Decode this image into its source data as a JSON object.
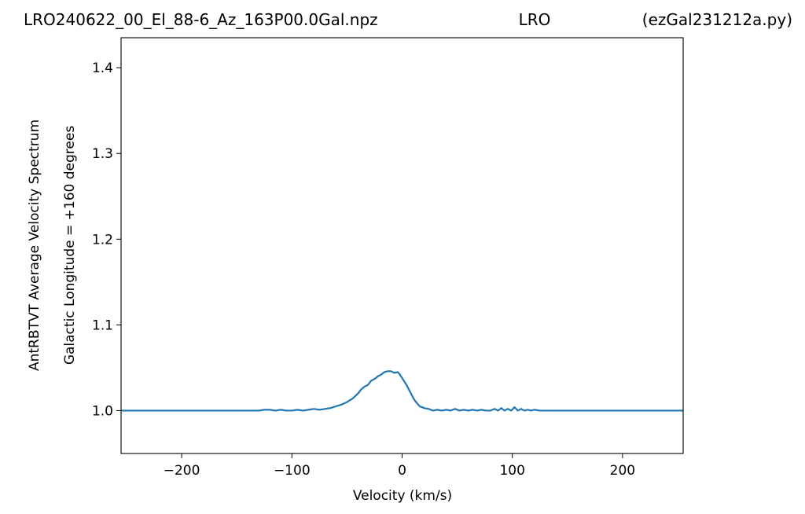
{
  "header": {
    "left": "LRO240622_00_El_88-6_Az_163P00.0Gal.npz",
    "center": "LRO",
    "right": "(ezGal231212a.py)"
  },
  "chart_data": {
    "type": "line",
    "xlabel": "Velocity (km/s)",
    "ylabel_line1": "AntRBTVT Average Velocity Spectrum",
    "ylabel_line2": "Galactic Longitude = +160 degrees",
    "xlim": [
      -255,
      255
    ],
    "ylim": [
      0.95,
      1.435
    ],
    "xticks": [
      -200,
      -100,
      0,
      100,
      200
    ],
    "xtick_labels": [
      "−200",
      "−100",
      "0",
      "100",
      "200"
    ],
    "yticks": [
      1.0,
      1.1,
      1.2,
      1.3,
      1.4
    ],
    "ytick_labels": [
      "1.0",
      "1.1",
      "1.2",
      "1.3",
      "1.4"
    ],
    "grid": false,
    "line_color": "#1f77b4",
    "series": [
      {
        "x": [
          -255,
          -200,
          -150,
          -130,
          -125,
          -120,
          -115,
          -110,
          -105,
          -100,
          -95,
          -90,
          -85,
          -80,
          -75,
          -70,
          -65,
          -60,
          -55,
          -50,
          -45,
          -40,
          -37,
          -34,
          -31,
          -28,
          -25,
          -22,
          -19,
          -16,
          -13,
          -10,
          -7,
          -4,
          -2,
          0,
          2,
          4,
          6,
          8,
          10,
          12,
          14,
          16,
          20,
          24,
          28,
          32,
          36,
          40,
          44,
          48,
          52,
          56,
          60,
          64,
          68,
          72,
          76,
          80,
          84,
          87,
          90,
          93,
          96,
          99,
          102,
          105,
          108,
          111,
          114,
          117,
          120,
          125,
          130,
          140,
          150,
          200,
          255
        ],
        "y": [
          1.0,
          1.0,
          1.0,
          1.0,
          1.001,
          1.001,
          1.0,
          1.001,
          1.0,
          1.0,
          1.001,
          1.0,
          1.001,
          1.002,
          1.001,
          1.002,
          1.003,
          1.005,
          1.007,
          1.01,
          1.014,
          1.02,
          1.025,
          1.028,
          1.03,
          1.035,
          1.037,
          1.04,
          1.042,
          1.045,
          1.046,
          1.046,
          1.044,
          1.045,
          1.042,
          1.038,
          1.034,
          1.03,
          1.025,
          1.02,
          1.015,
          1.011,
          1.008,
          1.005,
          1.003,
          1.002,
          1.0,
          1.001,
          1.0,
          1.001,
          1.0,
          1.002,
          1.0,
          1.001,
          1.0,
          1.001,
          1.0,
          1.001,
          1.0,
          1.0,
          1.002,
          1.0,
          1.003,
          1.0,
          1.002,
          1.0,
          1.004,
          1.0,
          1.002,
          1.0,
          1.001,
          1.0,
          1.001,
          1.0,
          1.0,
          1.0,
          1.0,
          1.0,
          1.0
        ]
      }
    ]
  }
}
